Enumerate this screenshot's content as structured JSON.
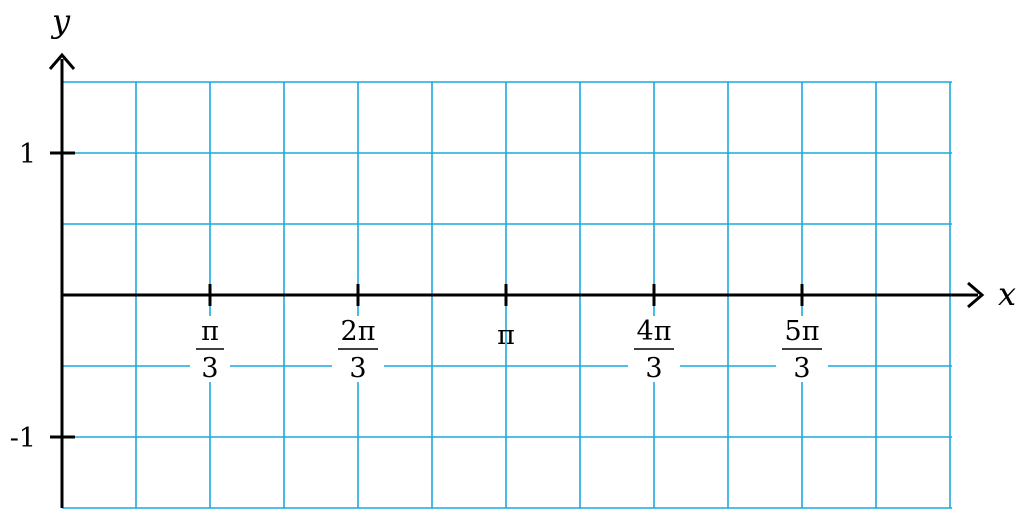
{
  "colors": {
    "grid": "#1aa8de",
    "axes": "#000000",
    "background": "#ffffff"
  },
  "axes": {
    "x_label": "x",
    "y_label": "y"
  },
  "y_ticks": [
    {
      "value": 1,
      "label": "1"
    },
    {
      "value": -1,
      "label": "-1"
    }
  ],
  "x_ticks": [
    {
      "value": 1.0472,
      "numerator": "π",
      "denominator": "3"
    },
    {
      "value": 2.0944,
      "numerator": "2π",
      "denominator": "3"
    },
    {
      "value": 3.1416,
      "numerator": "π",
      "denominator": ""
    },
    {
      "value": 4.1888,
      "numerator": "4π",
      "denominator": "3"
    },
    {
      "value": 5.236,
      "numerator": "5π",
      "denominator": "3"
    }
  ],
  "grid": {
    "x_step": "π/6",
    "y_step": 0.5,
    "x_range": [
      0,
      6.2832
    ],
    "y_range": [
      -1.5,
      1.5
    ]
  }
}
